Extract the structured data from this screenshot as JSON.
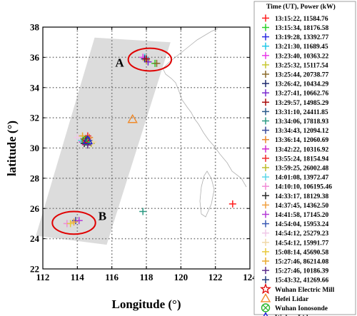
{
  "chart_data": {
    "type": "scatter",
    "title": "",
    "xlabel": "Longitude (°)",
    "ylabel": "latitude (°)",
    "xlim": [
      112,
      124
    ],
    "ylim": [
      22,
      38
    ],
    "xticks": [
      "112",
      "114",
      "116",
      "118",
      "120",
      "122",
      "124"
    ],
    "yticks": [
      "22",
      "24",
      "26",
      "28",
      "30",
      "32",
      "34",
      "36",
      "38"
    ],
    "grid": true,
    "legend_title": "Time (UT), Power (kW)",
    "legend_position": "right",
    "shaded_region": {
      "polygon": [
        [
          115.0,
          37.3
        ],
        [
          119.4,
          37.0
        ],
        [
          115.7,
          23.6
        ],
        [
          111.6,
          24.2
        ]
      ],
      "color": "#d3d3d3"
    },
    "highlight_ellipses": [
      {
        "label": "A",
        "cx": 118.2,
        "cy": 35.85,
        "rx": 1.25,
        "ry": 0.75,
        "color": "#e00000"
      },
      {
        "label": "B",
        "cx": 113.8,
        "cy": 25.05,
        "rx": 1.25,
        "ry": 0.75,
        "color": "#e00000"
      }
    ],
    "series": [
      {
        "name": "13:15:22, 11584.76",
        "color": "#ff1e1e",
        "x": 123.0,
        "y": 26.3
      },
      {
        "name": "13:15:34, 18176.58",
        "color": "#2ad12a",
        "x": 118.5,
        "y": 35.6
      },
      {
        "name": "13:19:28, 13392.77",
        "color": "#2a2ae0",
        "x": 118.0,
        "y": 35.9
      },
      {
        "name": "13:21:30, 11689.45",
        "color": "#22c8e8",
        "x": 117.9,
        "y": 36.0
      },
      {
        "name": "13:23:40, 10363.22",
        "color": "#e83ae8",
        "x": 117.8,
        "y": 36.0
      },
      {
        "name": "13:25:32, 15117.54",
        "color": "#c8c832",
        "x": 118.0,
        "y": 35.8
      },
      {
        "name": "13:25:44, 20738.77",
        "color": "#8a6a2a",
        "x": 118.6,
        "y": 35.6
      },
      {
        "name": "13:26:42, 10434.29",
        "color": "#1e2a6e",
        "x": 117.9,
        "y": 35.9
      },
      {
        "name": "13:27:41, 10662.76",
        "color": "#7a2ad0",
        "x": 118.1,
        "y": 35.7
      },
      {
        "name": "13:29:57, 14985.29",
        "color": "#a80a0a",
        "x": 118.0,
        "y": 35.9
      },
      {
        "name": "13:31:10, 24411.85",
        "color": "#2a5a8a",
        "x": 114.5,
        "y": 30.6
      },
      {
        "name": "13:34:06, 17818.93",
        "color": "#2a9a82",
        "x": 117.8,
        "y": 25.8
      },
      {
        "name": "13:34:43, 12094.12",
        "color": "#3a4a9a",
        "x": 113.9,
        "y": 25.2
      },
      {
        "name": "13:36:14, 12060.69",
        "color": "#e8862a",
        "x": 114.7,
        "y": 30.7
      },
      {
        "name": "13:42:22, 10316.92",
        "color": "#d02ad0",
        "x": 114.3,
        "y": 30.4
      },
      {
        "name": "13:55:24, 18154.94",
        "color": "#ee2a2a",
        "x": 114.6,
        "y": 30.8
      },
      {
        "name": "13:59:25, 26002.48",
        "color": "#bcbc2a",
        "x": 114.8,
        "y": 30.3
      },
      {
        "name": "14:01:08, 13972.47",
        "color": "#5ad6e8",
        "x": 114.2,
        "y": 30.5
      },
      {
        "name": "14:10:10, 106195.46",
        "color": "#f08ad6",
        "x": 113.4,
        "y": 25.0
      },
      {
        "name": "14:33:17, 18129.38",
        "color": "#2a2a2a",
        "x": 114.4,
        "y": 30.3
      },
      {
        "name": "14:37:45, 14362.50",
        "color": "#f0a040",
        "x": 113.8,
        "y": 25.1
      },
      {
        "name": "14:41:58, 17145.20",
        "color": "#b43ad6",
        "x": 114.1,
        "y": 25.2
      },
      {
        "name": "14:54:04, 15953.24",
        "color": "#3a5ab4",
        "x": 114.7,
        "y": 30.5
      },
      {
        "name": "14:54:12, 25279.23",
        "color": "#f0c8e8",
        "x": 114.0,
        "y": 30.7
      },
      {
        "name": "14:54:12, 15991.77",
        "color": "#f0d8a8",
        "x": 114.9,
        "y": 30.4
      },
      {
        "name": "15:08:14, 45690.58",
        "color": "#e8c83a",
        "x": 113.6,
        "y": 25.0
      },
      {
        "name": "15:27:46, 86214.08",
        "color": "#e8a82a",
        "x": 114.3,
        "y": 30.8
      },
      {
        "name": "15:27:46, 10186.39",
        "color": "#5a2a8a",
        "x": 114.6,
        "y": 30.2
      },
      {
        "name": "15:43:32, 41269.66",
        "color": "#1e3a7a",
        "x": 114.5,
        "y": 30.6
      }
    ],
    "stations": [
      {
        "name": "Wuhan Electric Mill",
        "shape": "star",
        "color": "#e00000",
        "x": 114.5,
        "y": 30.5
      },
      {
        "name": "Hefei Lidar",
        "shape": "triangle",
        "color": "#f08a2a",
        "x": 117.2,
        "y": 31.9
      },
      {
        "name": "Wuhan Ionosonde",
        "shape": "circlex",
        "color": "#2ab42a",
        "x": 114.5,
        "y": 30.5
      },
      {
        "name": "Wuhan Lidar",
        "shape": "triangle",
        "color": "#1e1ee0",
        "x": 114.6,
        "y": 30.5
      }
    ]
  }
}
